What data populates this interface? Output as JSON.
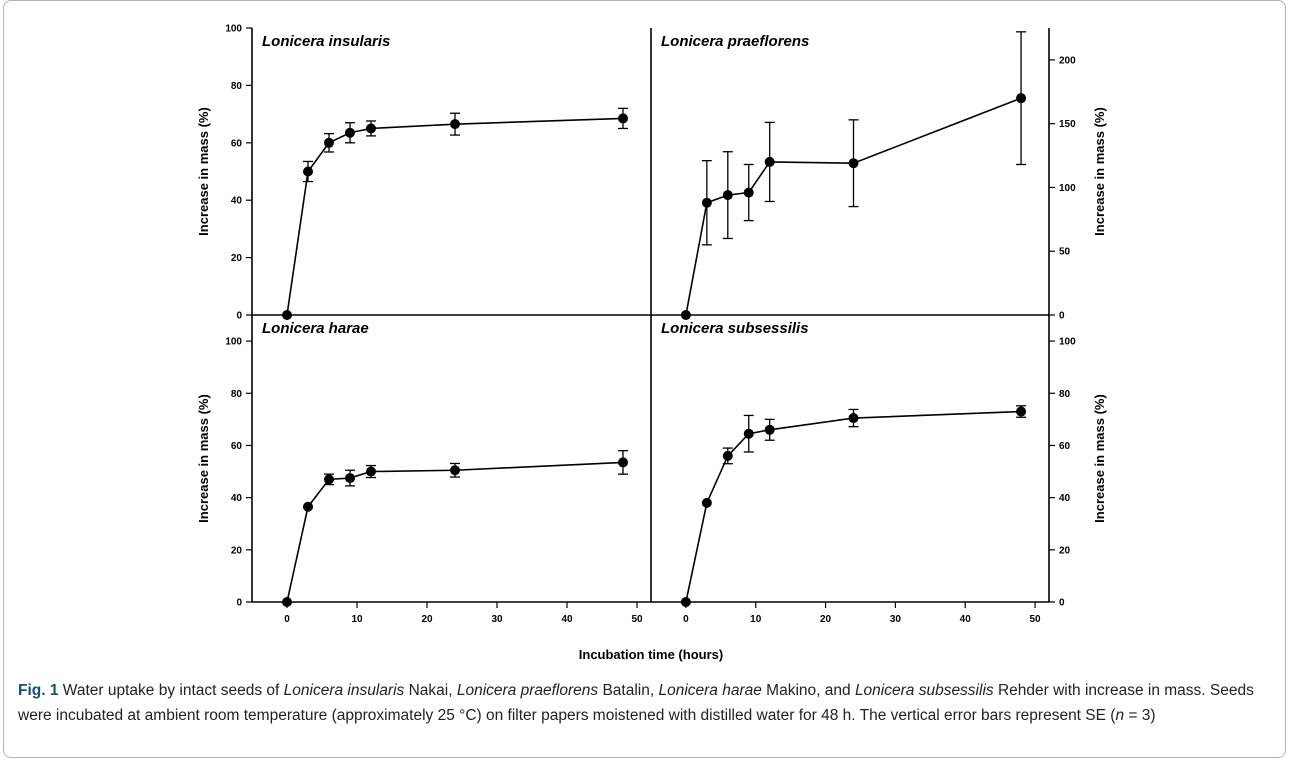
{
  "caption": {
    "label": "Fig. 1",
    "segments": [
      {
        "t": " Water uptake by intact seeds of ",
        "i": false
      },
      {
        "t": "Lonicera insularis",
        "i": true
      },
      {
        "t": " Nakai, ",
        "i": false
      },
      {
        "t": "Lonicera praeflorens",
        "i": true
      },
      {
        "t": " Batalin, ",
        "i": false
      },
      {
        "t": "Lonicera harae",
        "i": true
      },
      {
        "t": " Makino, and ",
        "i": false
      },
      {
        "t": "Lonicera subsessilis",
        "i": true
      },
      {
        "t": " Rehder with increase in mass. Seeds were incubated at ambient room temperature (approximately 25 °C) on filter papers moistened with distilled water for 48 h. The vertical error bars represent SE (",
        "i": false
      },
      {
        "t": "n",
        "i": true
      },
      {
        "t": " = 3)",
        "i": false
      }
    ]
  },
  "chart_data": [
    {
      "type": "line",
      "title": "Lonicera insularis",
      "ylabel": "Increase in mass (%)",
      "xlim": [
        -5,
        52
      ],
      "ylim": [
        0,
        100
      ],
      "yticks": [
        0,
        20,
        40,
        60,
        80,
        100
      ],
      "x": [
        0,
        3,
        6,
        9,
        12,
        24,
        48
      ],
      "y": [
        0,
        50,
        60,
        63.5,
        65,
        66.5,
        68.5
      ],
      "se": [
        0,
        3.5,
        3.2,
        3.5,
        2.6,
        3.8,
        3.5
      ]
    },
    {
      "type": "line",
      "title": "Lonicera praeflorens",
      "ylabel": "Increase in mass (%)",
      "xlim": [
        -5,
        52
      ],
      "ylim": [
        0,
        225
      ],
      "yticks": [
        0,
        50,
        100,
        150,
        200
      ],
      "x": [
        0,
        3,
        6,
        9,
        12,
        24,
        48
      ],
      "y": [
        0,
        88,
        94,
        96,
        120,
        119,
        170
      ],
      "se": [
        0,
        33,
        34,
        22,
        31,
        34,
        52
      ]
    },
    {
      "type": "line",
      "title": "Lonicera harae",
      "ylabel": "Increase in mass (%)",
      "xlabel": "Incubation time (hours)",
      "xlim": [
        -5,
        52
      ],
      "ylim": [
        0,
        110
      ],
      "yticks": [
        0,
        20,
        40,
        60,
        80,
        100
      ],
      "xticks": [
        0,
        10,
        20,
        30,
        40,
        50
      ],
      "x": [
        0,
        3,
        6,
        9,
        12,
        24,
        48
      ],
      "y": [
        0,
        36.5,
        47,
        47.5,
        50,
        50.5,
        53.5
      ],
      "se": [
        0,
        0,
        2,
        3,
        2.3,
        2.6,
        4.5
      ]
    },
    {
      "type": "line",
      "title": "Lonicera subsessilis",
      "ylabel": "Increase in mass (%)",
      "xlim": [
        -5,
        52
      ],
      "ylim": [
        0,
        110
      ],
      "yticks": [
        0,
        20,
        40,
        60,
        80,
        100
      ],
      "xticks": [
        0,
        10,
        20,
        30,
        40,
        50
      ],
      "x": [
        0,
        3,
        6,
        9,
        12,
        24,
        48
      ],
      "y": [
        0,
        38,
        56,
        64.5,
        66,
        70.5,
        73
      ],
      "se": [
        0,
        0,
        3,
        7,
        4,
        3.3,
        2.2
      ]
    }
  ],
  "shared_xlabel": "Incubation time (hours)"
}
